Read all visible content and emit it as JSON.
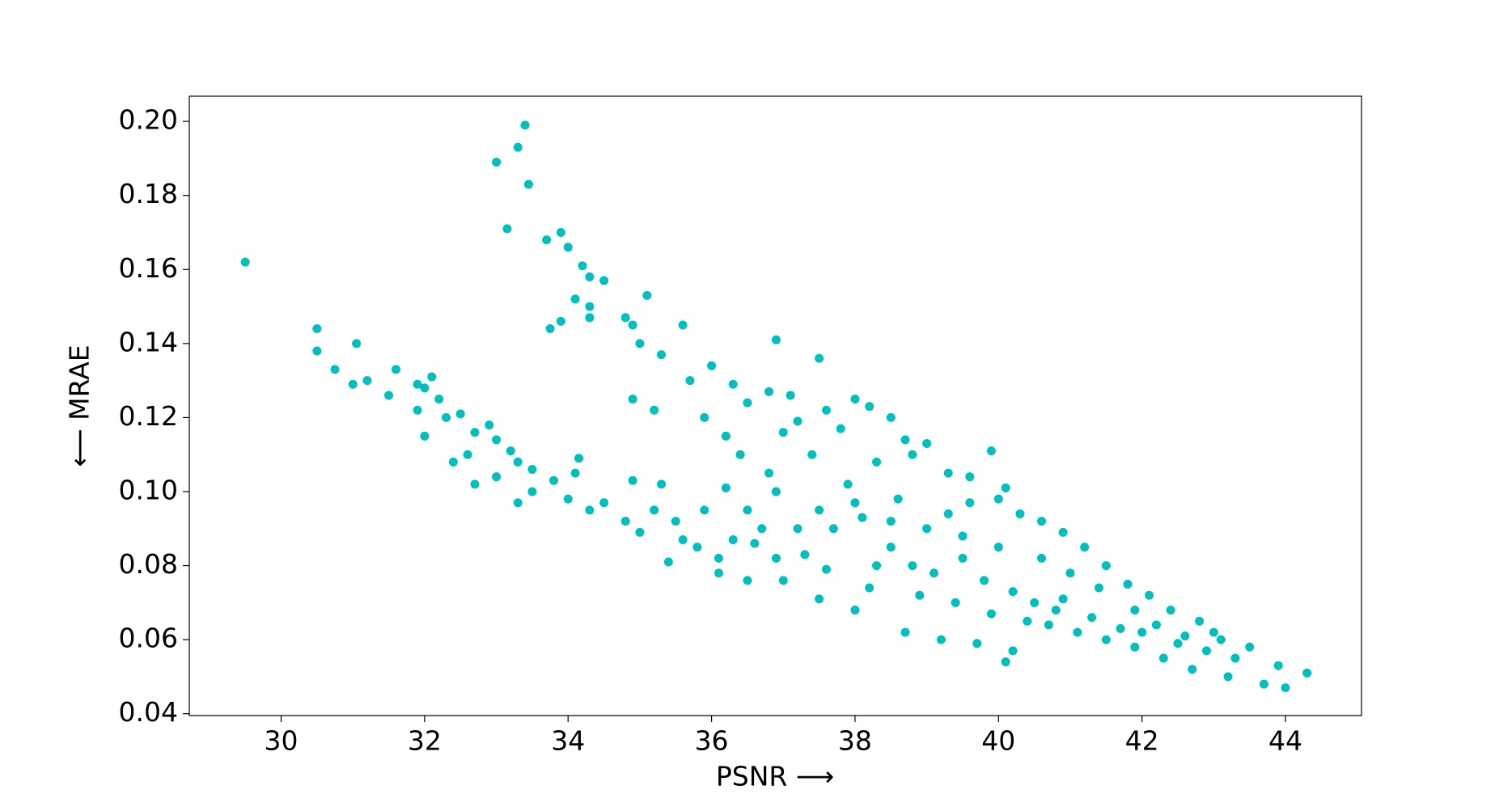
{
  "chart_data": {
    "type": "scatter",
    "x_label": "PSNR ⟶",
    "y_label": "⟵ MRAE",
    "color": "#00bfbf",
    "xlim": [
      28.72,
      45.06
    ],
    "ylim": [
      0.0395,
      0.2068
    ],
    "xticks": [
      30,
      32,
      34,
      36,
      38,
      40,
      42,
      44
    ],
    "yticks": [
      0.04,
      0.06,
      0.08,
      {
        "value": 0.1,
        "label": "0.10"
      },
      0.12,
      0.14,
      0.16,
      0.18,
      {
        "value": 0.2,
        "label": "0.20"
      }
    ],
    "x": [
      29.5,
      33.4,
      33.3,
      33.0,
      33.45,
      33.15,
      33.7,
      33.9,
      34.0,
      34.2,
      34.3,
      34.5,
      34.1,
      34.3,
      33.75,
      33.9,
      34.3,
      35.1,
      34.8,
      34.9,
      35.0,
      35.3,
      35.6,
      36.9,
      37.5,
      30.5,
      30.5,
      31.05,
      30.75,
      31.0,
      31.2,
      31.5,
      31.6,
      31.9,
      32.1,
      32.0,
      31.9,
      32.2,
      32.0,
      32.3,
      32.5,
      32.7,
      32.4,
      32.6,
      32.9,
      33.0,
      32.7,
      33.0,
      33.2,
      33.3,
      33.5,
      33.5,
      33.3,
      33.8,
      34.0,
      34.1,
      34.15,
      34.3,
      34.5,
      34.8,
      34.9,
      35.0,
      35.2,
      35.3,
      35.5,
      35.4,
      35.6,
      35.8,
      35.9,
      36.1,
      36.3,
      36.1,
      36.5,
      36.5,
      36.7,
      36.0,
      36.3,
      36.5,
      36.8,
      37.1,
      37.2,
      37.6,
      37.8,
      38.0,
      38.2,
      38.5,
      38.7,
      39.0,
      39.3,
      39.6,
      39.9,
      40.0,
      40.3,
      40.6,
      40.9,
      41.2,
      41.5,
      41.8,
      42.1,
      42.4,
      42.8,
      43.1,
      43.5,
      43.9,
      44.3,
      44.0,
      43.7,
      43.2,
      42.7,
      42.3,
      41.9,
      41.5,
      41.1,
      40.7,
      40.2,
      40.1,
      39.7,
      39.2,
      38.7,
      38.0,
      37.5,
      37.0,
      37.3,
      37.7,
      38.1,
      38.5,
      38.8,
      39.1,
      39.5,
      39.8,
      40.2,
      40.5,
      40.8,
      41.3,
      41.7,
      42.0,
      42.5,
      42.9,
      43.3,
      40.0,
      39.5,
      39.0,
      38.5,
      38.0,
      37.5,
      36.8,
      36.4,
      36.2,
      36.9,
      37.2,
      38.3,
      38.9,
      39.4,
      39.9,
      40.4,
      40.9,
      41.4,
      41.9,
      42.2,
      42.6,
      43.0,
      41.0,
      40.6,
      39.3,
      38.6,
      37.9,
      38.3,
      38.8,
      37.4,
      36.6,
      36.9,
      37.6,
      38.2,
      35.7,
      35.2,
      34.9,
      35.9,
      36.2,
      37.0,
      39.6,
      40.1
    ],
    "values": [
      0.162,
      0.199,
      0.193,
      0.189,
      0.183,
      0.171,
      0.168,
      0.17,
      0.166,
      0.161,
      0.158,
      0.157,
      0.152,
      0.15,
      0.144,
      0.146,
      0.147,
      0.153,
      0.147,
      0.145,
      0.14,
      0.137,
      0.145,
      0.141,
      0.136,
      0.144,
      0.138,
      0.14,
      0.133,
      0.129,
      0.13,
      0.126,
      0.133,
      0.129,
      0.131,
      0.128,
      0.122,
      0.125,
      0.115,
      0.12,
      0.121,
      0.116,
      0.108,
      0.11,
      0.118,
      0.114,
      0.102,
      0.104,
      0.111,
      0.108,
      0.106,
      0.1,
      0.097,
      0.103,
      0.098,
      0.105,
      0.109,
      0.095,
      0.097,
      0.092,
      0.103,
      0.089,
      0.095,
      0.102,
      0.092,
      0.081,
      0.087,
      0.085,
      0.095,
      0.082,
      0.087,
      0.078,
      0.076,
      0.095,
      0.09,
      0.134,
      0.129,
      0.124,
      0.127,
      0.126,
      0.119,
      0.122,
      0.117,
      0.125,
      0.123,
      0.12,
      0.114,
      0.113,
      0.105,
      0.097,
      0.111,
      0.098,
      0.094,
      0.092,
      0.089,
      0.085,
      0.08,
      0.075,
      0.072,
      0.068,
      0.065,
      0.06,
      0.058,
      0.053,
      0.051,
      0.047,
      0.048,
      0.05,
      0.052,
      0.055,
      0.058,
      0.06,
      0.062,
      0.064,
      0.057,
      0.054,
      0.059,
      0.06,
      0.062,
      0.068,
      0.071,
      0.076,
      0.083,
      0.09,
      0.093,
      0.085,
      0.08,
      0.078,
      0.082,
      0.076,
      0.073,
      0.07,
      0.068,
      0.066,
      0.063,
      0.062,
      0.059,
      0.057,
      0.055,
      0.085,
      0.088,
      0.09,
      0.092,
      0.097,
      0.095,
      0.105,
      0.11,
      0.115,
      0.1,
      0.09,
      0.08,
      0.072,
      0.07,
      0.067,
      0.065,
      0.071,
      0.074,
      0.068,
      0.064,
      0.061,
      0.062,
      0.078,
      0.082,
      0.094,
      0.098,
      0.102,
      0.108,
      0.11,
      0.11,
      0.086,
      0.082,
      0.079,
      0.074,
      0.13,
      0.122,
      0.125,
      0.12,
      0.101,
      0.116,
      0.104,
      0.101
    ]
  }
}
